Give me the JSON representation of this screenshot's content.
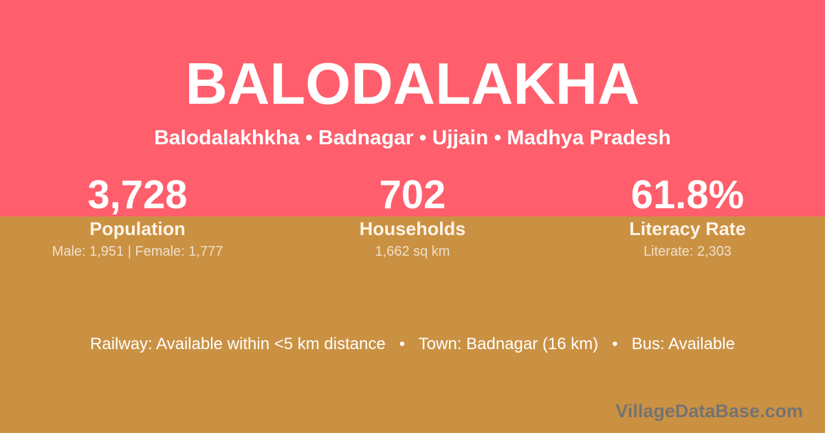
{
  "theme": {
    "top_bg": "#ff5e6c",
    "bottom_bg": "#ca9143",
    "text_color": "#ffffff",
    "watermark_color": "rgba(108, 112, 121, 0.9)"
  },
  "header": {
    "title": "BALODALAKHA",
    "subtitle": "Balodalakhkha • Badnagar • Ujjain • Madhya Pradesh"
  },
  "stats": [
    {
      "value": "3,728",
      "label": "Population",
      "detail": "Male: 1,951 | Female: 1,777"
    },
    {
      "value": "702",
      "label": "Households",
      "detail": "1,662 sq km"
    },
    {
      "value": "61.8%",
      "label": "Literacy Rate",
      "detail": "Literate: 2,303"
    }
  ],
  "footer": {
    "info": "Railway: Available within <5 km distance   •   Town: Badnagar (16 km)   •   Bus: Available",
    "watermark": "VillageDataBase.com"
  }
}
